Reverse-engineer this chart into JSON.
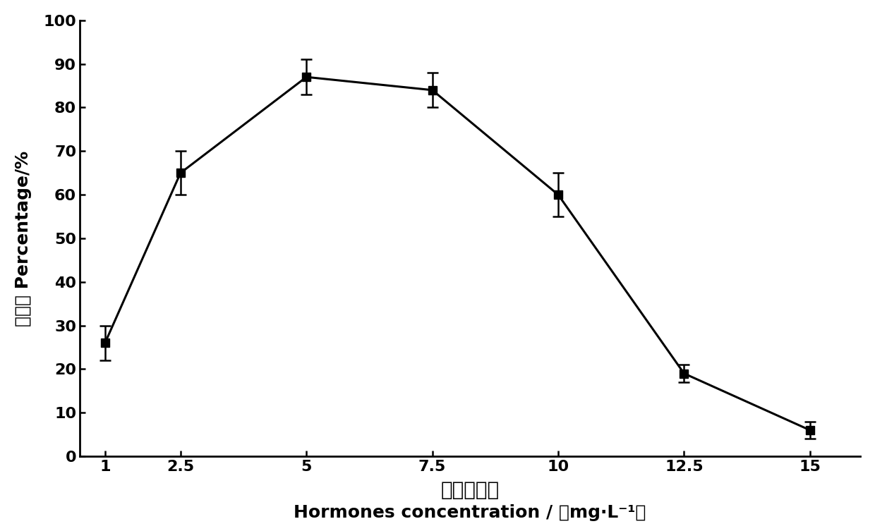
{
  "x": [
    1,
    2.5,
    5,
    7.5,
    10,
    12.5,
    15
  ],
  "y": [
    26,
    65,
    87,
    84,
    60,
    19,
    6
  ],
  "yerr": [
    4,
    5,
    4,
    4,
    5,
    2,
    2
  ],
  "xlabel_chinese": "麦草畜浓度",
  "xlabel_english": "Hormones concentration / （mg·L⁻¹）",
  "ylabel_chinese": "百分率",
  "ylabel_english": "Percentage/%",
  "xlim": [
    0.5,
    16
  ],
  "ylim": [
    0,
    100
  ],
  "yticks": [
    0,
    10,
    20,
    30,
    40,
    50,
    60,
    70,
    80,
    90,
    100
  ],
  "xticks": [
    1,
    2.5,
    5,
    7.5,
    10,
    12.5,
    15
  ],
  "line_color": "#000000",
  "marker": "s",
  "marker_size": 8,
  "line_width": 2.2,
  "background_color": "#ffffff",
  "label_fontsize": 18,
  "tick_fontsize": 16,
  "chinese_fontsize": 20
}
